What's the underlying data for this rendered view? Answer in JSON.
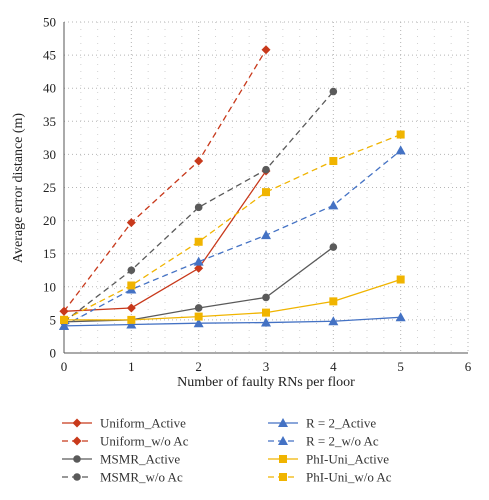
{
  "chart_data": {
    "type": "line",
    "xlabel": "Number of faulty RNs per floor",
    "ylabel": "Average error distance (m)",
    "xlim": [
      0,
      6
    ],
    "ylim": [
      0,
      50
    ],
    "xticks": [
      "0",
      "1",
      "2",
      "3",
      "4",
      "5",
      "6"
    ],
    "yticks": [
      "0",
      "5",
      "10",
      "15",
      "20",
      "25",
      "30",
      "35",
      "40",
      "45",
      "50"
    ],
    "grid": "dotted",
    "legend_position": "bottom",
    "series": [
      {
        "name": "Uniform_Active",
        "color": "#c8391b",
        "marker": "diamond",
        "dash": "solid",
        "x": [
          0,
          1,
          2,
          3
        ],
        "y": [
          6.3,
          6.8,
          12.8,
          27.5
        ]
      },
      {
        "name": "Uniform_w/o Ac",
        "color": "#c8391b",
        "marker": "diamond",
        "dash": "dashed",
        "x": [
          0,
          1,
          2,
          3
        ],
        "y": [
          6.3,
          19.7,
          29.0,
          45.8
        ]
      },
      {
        "name": "MSMR_Active",
        "color": "#5a5a5a",
        "marker": "circle",
        "dash": "solid",
        "x": [
          0,
          1,
          2,
          3,
          4
        ],
        "y": [
          4.7,
          5.0,
          6.8,
          8.4,
          16.0
        ]
      },
      {
        "name": "MSMR_w/o Ac",
        "color": "#5a5a5a",
        "marker": "circle",
        "dash": "dashed",
        "x": [
          0,
          1,
          2,
          3,
          4
        ],
        "y": [
          4.7,
          12.5,
          22.0,
          27.7,
          39.5
        ]
      },
      {
        "name": "R = 2_Active",
        "color": "#4472c4",
        "marker": "triangle",
        "dash": "solid",
        "x": [
          0,
          1,
          2,
          3,
          4,
          5
        ],
        "y": [
          4.1,
          4.3,
          4.5,
          4.6,
          4.8,
          5.4
        ]
      },
      {
        "name": "R = 2_w/o Ac",
        "color": "#4472c4",
        "marker": "triangle",
        "dash": "dashed",
        "x": [
          0,
          1,
          2,
          3,
          4,
          5
        ],
        "y": [
          4.1,
          9.6,
          13.8,
          17.8,
          22.3,
          30.6
        ]
      },
      {
        "name": "PhI-Uni_Active",
        "color": "#f0b400",
        "marker": "square",
        "dash": "solid",
        "x": [
          0,
          1,
          2,
          3,
          4,
          5
        ],
        "y": [
          5.0,
          5.0,
          5.5,
          6.1,
          7.8,
          11.1
        ]
      },
      {
        "name": "PhI-Uni_w/o Ac",
        "color": "#f0b400",
        "marker": "square",
        "dash": "dashed",
        "x": [
          0,
          1,
          2,
          3,
          4,
          5
        ],
        "y": [
          5.0,
          10.2,
          16.8,
          24.3,
          29.0,
          33.0
        ]
      }
    ]
  }
}
